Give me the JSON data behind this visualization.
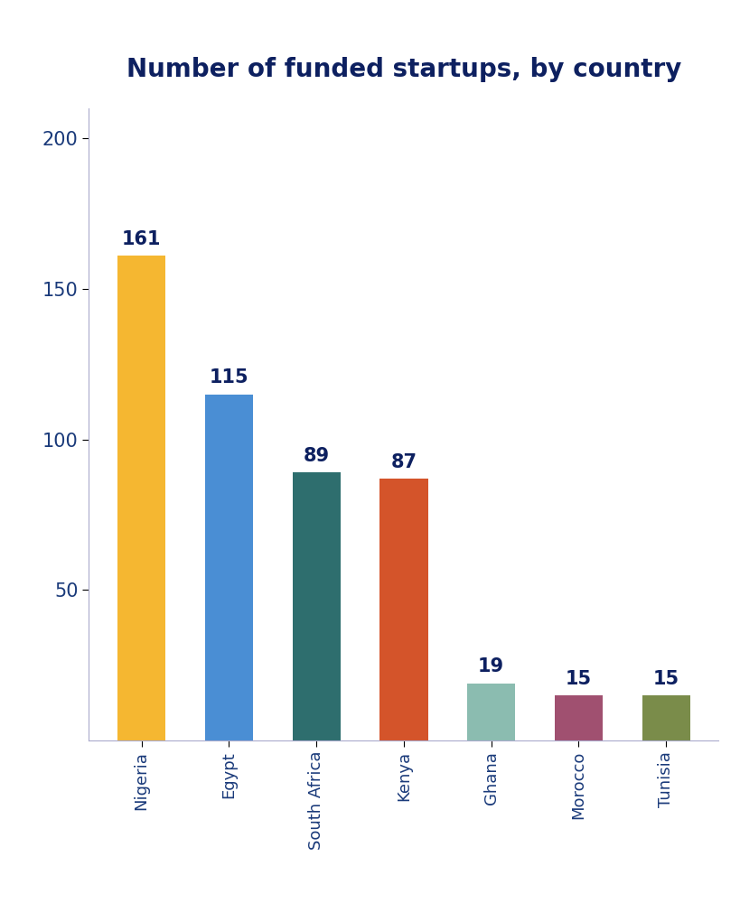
{
  "title": "Number of funded startups, by country",
  "categories": [
    "Nigeria",
    "Egypt",
    "South Africa",
    "Kenya",
    "Ghana",
    "Morocco",
    "Tunisia"
  ],
  "values": [
    161,
    115,
    89,
    87,
    19,
    15,
    15
  ],
  "bar_colors": [
    "#F5B731",
    "#4A8ED4",
    "#2E6E6E",
    "#D4542A",
    "#8BBCB0",
    "#A05070",
    "#7A8C4A"
  ],
  "label_color": "#0D2060",
  "title_color": "#0D2060",
  "tick_color": "#1A3A7A",
  "background_color": "#FFFFFF",
  "ylim": [
    0,
    210
  ],
  "yticks": [
    50,
    100,
    150,
    200
  ],
  "title_fontsize": 20,
  "label_fontsize": 15,
  "tick_fontsize": 15,
  "xtick_fontsize": 13,
  "bar_width": 0.55
}
